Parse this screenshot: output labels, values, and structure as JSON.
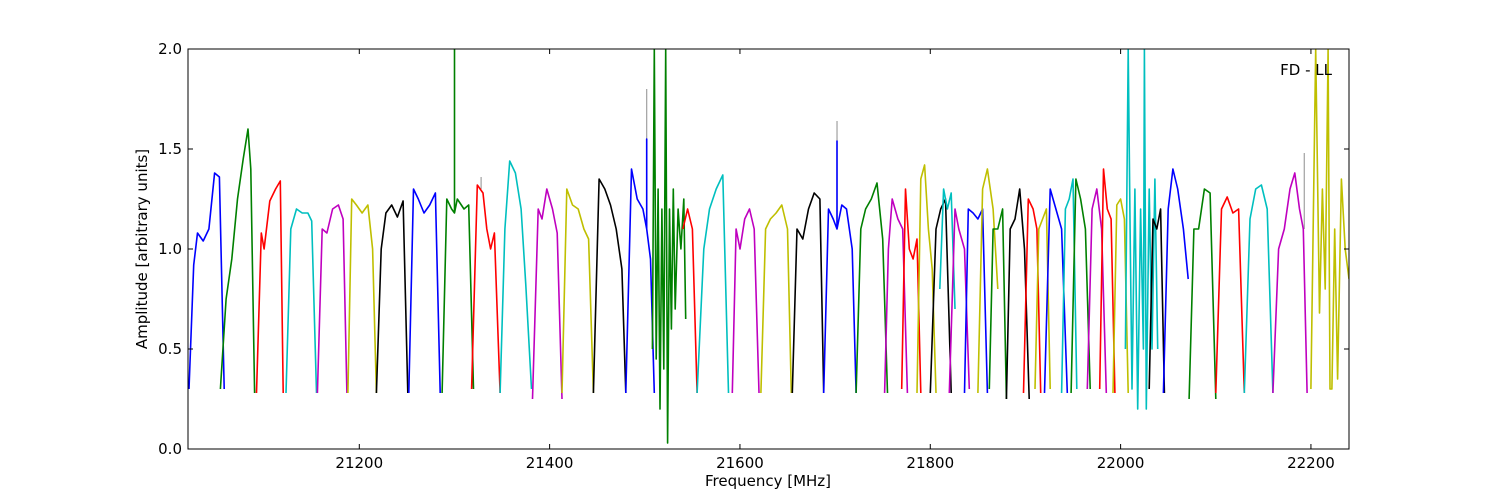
{
  "chart_data": {
    "type": "line",
    "title": "",
    "annotation": "FD - LL",
    "xlabel": "Frequency [MHz]",
    "ylabel": "Amplitude [arbitrary units]",
    "xlim": [
      21020,
      22240
    ],
    "ylim": [
      0.0,
      2.0
    ],
    "xticks": [
      21200,
      21400,
      21600,
      21800,
      22000,
      22200
    ],
    "xtick_labels": [
      "21200",
      "21400",
      "21600",
      "21800",
      "22000",
      "22200"
    ],
    "yticks": [
      0.0,
      0.5,
      1.0,
      1.5,
      2.0
    ],
    "ytick_labels": [
      "0.0",
      "0.5",
      "1.0",
      "1.5",
      "2.0"
    ],
    "grid": false,
    "legend": "none",
    "background_color": "#ffffff",
    "series_colors": [
      "#0000ff",
      "#008000",
      "#ff0000",
      "#00bfbf",
      "#bf00bf",
      "#bfbf00",
      "#000000"
    ],
    "spur_color": "#a0a0a0",
    "series": [
      {
        "color": "#0000ff",
        "x": [
          21021,
          21026,
          21030,
          21036,
          21042,
          21048,
          21053,
          21058
        ],
        "y": [
          0.3,
          0.92,
          1.08,
          1.04,
          1.1,
          1.38,
          1.36,
          0.3
        ]
      },
      {
        "color": "#008000",
        "x": [
          21054,
          21060,
          21066,
          21072,
          21078,
          21083,
          21086,
          21090
        ],
        "y": [
          0.3,
          0.75,
          0.95,
          1.25,
          1.45,
          1.6,
          1.4,
          0.28
        ]
      },
      {
        "color": "#ff0000",
        "x": [
          21092,
          21097,
          21100,
          21106,
          21112,
          21117,
          21120
        ],
        "y": [
          0.28,
          1.08,
          1.0,
          1.24,
          1.3,
          1.34,
          0.28
        ]
      },
      {
        "color": "#00bfbf",
        "x": [
          21123,
          21128,
          21134,
          21140,
          21146,
          21150,
          21155
        ],
        "y": [
          0.28,
          1.1,
          1.2,
          1.18,
          1.18,
          1.14,
          0.28
        ]
      },
      {
        "color": "#bf00bf",
        "x": [
          21156,
          21161,
          21166,
          21172,
          21178,
          21183,
          21187
        ],
        "y": [
          0.28,
          1.1,
          1.08,
          1.2,
          1.22,
          1.15,
          0.28
        ]
      },
      {
        "color": "#bfbf00",
        "x": [
          21188,
          21192,
          21197,
          21203,
          21209,
          21214,
          21218
        ],
        "y": [
          0.28,
          1.25,
          1.22,
          1.18,
          1.22,
          1.0,
          0.28
        ]
      },
      {
        "color": "#000000",
        "x": [
          21218,
          21223,
          21228,
          21234,
          21240,
          21246,
          21251
        ],
        "y": [
          0.28,
          1.0,
          1.18,
          1.22,
          1.16,
          1.24,
          0.28
        ]
      },
      {
        "color": "#0000ff",
        "x": [
          21252,
          21257,
          21262,
          21268,
          21274,
          21280,
          21285
        ],
        "y": [
          0.28,
          1.3,
          1.25,
          1.18,
          1.22,
          1.28,
          0.28
        ]
      },
      {
        "color": "#008000",
        "x": [
          21287,
          21292,
          21297,
          21300,
          21300,
          21300,
          21303,
          21310,
          21315,
          21320
        ],
        "y": [
          0.28,
          1.25,
          1.2,
          1.18,
          2.0,
          1.18,
          1.25,
          1.2,
          1.22,
          0.3
        ]
      },
      {
        "color": "#ff0000",
        "x": [
          21318,
          21324,
          21330,
          21334,
          21338,
          21342,
          21348
        ],
        "y": [
          0.3,
          1.32,
          1.28,
          1.1,
          1.0,
          1.08,
          0.28
        ]
      },
      {
        "color": "#00bfbf",
        "x": [
          21348,
          21353,
          21358,
          21364,
          21370,
          21375,
          21381
        ],
        "y": [
          0.28,
          1.1,
          1.44,
          1.38,
          1.2,
          0.82,
          0.3
        ]
      },
      {
        "color": "#bf00bf",
        "x": [
          21382,
          21388,
          21392,
          21397,
          21403,
          21408,
          21413
        ],
        "y": [
          0.25,
          1.2,
          1.15,
          1.3,
          1.2,
          1.08,
          0.25
        ]
      },
      {
        "color": "#bfbf00",
        "x": [
          21413,
          21418,
          21424,
          21430,
          21436,
          21441,
          21446
        ],
        "y": [
          0.28,
          1.3,
          1.22,
          1.2,
          1.1,
          1.05,
          0.28
        ]
      },
      {
        "color": "#000000",
        "x": [
          21446,
          21452,
          21458,
          21464,
          21470,
          21476,
          21480
        ],
        "y": [
          0.28,
          1.35,
          1.3,
          1.22,
          1.1,
          0.9,
          0.28
        ]
      },
      {
        "color": "#0000ff",
        "x": [
          21480,
          21486,
          21492,
          21498,
          21502,
          21502,
          21502,
          21506,
          21510
        ],
        "y": [
          0.28,
          1.4,
          1.25,
          1.2,
          1.1,
          1.55,
          1.1,
          0.95,
          0.28
        ]
      },
      {
        "color": "#008000",
        "x": [
          21508,
          21510,
          21512,
          21514,
          21516,
          21518,
          21520,
          21522,
          21524,
          21526,
          21528,
          21530,
          21532,
          21535,
          21538,
          21541,
          21543
        ],
        "y": [
          0.5,
          2.0,
          0.45,
          1.3,
          0.2,
          1.2,
          0.4,
          2.0,
          0.03,
          1.2,
          0.6,
          1.3,
          0.7,
          1.2,
          1.0,
          1.25,
          0.65
        ]
      },
      {
        "color": "#ff0000",
        "x": [
          21540,
          21545,
          21550,
          21555
        ],
        "y": [
          1.1,
          1.2,
          1.1,
          0.28
        ]
      },
      {
        "color": "#00bfbf",
        "x": [
          21555,
          21562,
          21568,
          21575,
          21582,
          21588
        ],
        "y": [
          0.28,
          1.0,
          1.2,
          1.3,
          1.37,
          0.28
        ]
      },
      {
        "color": "#bf00bf",
        "x": [
          21592,
          21596,
          21600,
          21605,
          21610,
          21615,
          21620
        ],
        "y": [
          0.28,
          1.1,
          1.0,
          1.15,
          1.2,
          1.1,
          0.28
        ]
      },
      {
        "color": "#bfbf00",
        "x": [
          21622,
          21627,
          21632,
          21638,
          21644,
          21650,
          21654
        ],
        "y": [
          0.28,
          1.1,
          1.15,
          1.18,
          1.22,
          1.1,
          0.28
        ]
      },
      {
        "color": "#000000",
        "x": [
          21655,
          21660,
          21666,
          21672,
          21678,
          21684,
          21688
        ],
        "y": [
          0.28,
          1.1,
          1.05,
          1.2,
          1.28,
          1.25,
          0.28
        ]
      },
      {
        "color": "#0000ff",
        "x": [
          21688,
          21693,
          21698,
          21702,
          21702,
          21702,
          21707,
          21712,
          21718,
          21722
        ],
        "y": [
          0.28,
          1.2,
          1.15,
          1.1,
          1.54,
          1.1,
          1.22,
          1.2,
          1.0,
          0.28
        ]
      },
      {
        "color": "#008000",
        "x": [
          21722,
          21727,
          21732,
          21738,
          21744,
          21750,
          21755
        ],
        "y": [
          0.28,
          1.1,
          1.2,
          1.25,
          1.33,
          1.05,
          0.28
        ]
      },
      {
        "color": "#bf00bf",
        "x": [
          21752,
          21756,
          21760,
          21766,
          21771,
          21776
        ],
        "y": [
          0.28,
          1.0,
          1.25,
          1.15,
          1.1,
          0.28
        ]
      },
      {
        "color": "#ff0000",
        "x": [
          21770,
          21774,
          21778,
          21782,
          21786,
          21790
        ],
        "y": [
          0.3,
          1.3,
          1.0,
          0.95,
          1.05,
          0.28
        ]
      },
      {
        "color": "#bfbf00",
        "x": [
          21786,
          21790,
          21794,
          21798,
          21802,
          21806
        ],
        "y": [
          0.28,
          1.35,
          1.42,
          1.1,
          0.9,
          0.28
        ]
      },
      {
        "color": "#000000",
        "x": [
          21800,
          21806,
          21811,
          21816,
          21822
        ],
        "y": [
          0.28,
          1.1,
          1.2,
          1.25,
          0.28
        ]
      },
      {
        "color": "#00bfbf",
        "x": [
          21810,
          21814,
          21818,
          21822,
          21826
        ],
        "y": [
          0.8,
          1.3,
          1.2,
          1.28,
          0.7
        ]
      },
      {
        "color": "#bf00bf",
        "x": [
          21820,
          21826,
          21830,
          21836,
          21841
        ],
        "y": [
          0.28,
          1.2,
          1.1,
          1.0,
          0.3
        ]
      },
      {
        "color": "#0000ff",
        "x": [
          21836,
          21840,
          21845,
          21850,
          21855,
          21860
        ],
        "y": [
          0.28,
          1.2,
          1.18,
          1.15,
          1.2,
          0.28
        ]
      },
      {
        "color": "#bfbf00",
        "x": [
          21850,
          21855,
          21860,
          21866,
          21871
        ],
        "y": [
          0.28,
          1.3,
          1.4,
          1.2,
          0.8
        ]
      },
      {
        "color": "#008000",
        "x": [
          21862,
          21866,
          21871,
          21876,
          21880
        ],
        "y": [
          0.3,
          1.1,
          1.1,
          1.2,
          0.25
        ]
      },
      {
        "color": "#000000",
        "x": [
          21880,
          21884,
          21889,
          21894,
          21899,
          21904
        ],
        "y": [
          0.25,
          1.1,
          1.15,
          1.3,
          1.0,
          0.25
        ]
      },
      {
        "color": "#ff0000",
        "x": [
          21898,
          21903,
          21908,
          21912,
          21916
        ],
        "y": [
          0.28,
          1.25,
          1.2,
          1.1,
          0.28
        ]
      },
      {
        "color": "#bfbf00",
        "x": [
          21910,
          21914,
          21918,
          21922,
          21926
        ],
        "y": [
          0.3,
          1.1,
          1.15,
          1.2,
          0.3
        ]
      },
      {
        "color": "#0000ff",
        "x": [
          21920,
          21926,
          21932,
          21938,
          21944
        ],
        "y": [
          0.28,
          1.3,
          1.2,
          1.1,
          0.28
        ]
      },
      {
        "color": "#00bfbf",
        "x": [
          21938,
          21942,
          21946,
          21950,
          21954
        ],
        "y": [
          0.28,
          1.2,
          1.25,
          1.35,
          0.3
        ]
      },
      {
        "color": "#008000",
        "x": [
          21948,
          21953,
          21958,
          21963,
          21968
        ],
        "y": [
          0.28,
          1.35,
          1.25,
          1.1,
          0.3
        ]
      },
      {
        "color": "#bf00bf",
        "x": [
          21965,
          21970,
          21975,
          21980,
          21985
        ],
        "y": [
          0.3,
          1.2,
          1.3,
          1.1,
          0.28
        ]
      },
      {
        "color": "#ff0000",
        "x": [
          21978,
          21982,
          21986,
          21990,
          21994
        ],
        "y": [
          0.3,
          1.4,
          1.2,
          1.15,
          0.28
        ]
      },
      {
        "color": "#bfbf00",
        "x": [
          21992,
          21996,
          22000,
          22004,
          22008
        ],
        "y": [
          0.28,
          1.22,
          1.25,
          1.15,
          0.28
        ]
      },
      {
        "color": "#00bfbf",
        "x": [
          22005,
          22008,
          22010,
          22012,
          22015,
          22018,
          22021,
          22024,
          22025,
          22027,
          22030,
          22033,
          22036,
          22039
        ],
        "y": [
          0.5,
          2.0,
          1.1,
          0.3,
          1.3,
          0.2,
          1.2,
          0.5,
          2.0,
          0.2,
          1.3,
          0.5,
          1.35,
          0.5
        ]
      },
      {
        "color": "#000000",
        "x": [
          22030,
          22034,
          22038,
          22042,
          22046
        ],
        "y": [
          0.3,
          1.15,
          1.1,
          1.2,
          0.28
        ]
      },
      {
        "color": "#0000ff",
        "x": [
          22045,
          22050,
          22055,
          22060,
          22066,
          22071
        ],
        "y": [
          0.28,
          1.2,
          1.4,
          1.3,
          1.1,
          0.85
        ]
      },
      {
        "color": "#008000",
        "x": [
          22072,
          22077,
          22082,
          22088,
          22094,
          22100
        ],
        "y": [
          0.25,
          1.1,
          1.1,
          1.3,
          1.28,
          0.25
        ]
      },
      {
        "color": "#ff0000",
        "x": [
          22100,
          22106,
          22112,
          22118,
          22124,
          22130
        ],
        "y": [
          0.28,
          1.2,
          1.26,
          1.18,
          1.2,
          0.28
        ]
      },
      {
        "color": "#00bfbf",
        "x": [
          22130,
          22136,
          22142,
          22148,
          22154,
          22160
        ],
        "y": [
          0.28,
          1.15,
          1.3,
          1.32,
          1.2,
          0.28
        ]
      },
      {
        "color": "#bf00bf",
        "x": [
          22160,
          22166,
          22172,
          22178,
          22183,
          22188,
          22192,
          22196
        ],
        "y": [
          0.28,
          1.0,
          1.1,
          1.3,
          1.38,
          1.2,
          1.1,
          0.28
        ]
      },
      {
        "color": "#bfbf00",
        "x": [
          22200,
          22205,
          22209,
          22212,
          22215,
          22218,
          22220,
          22222,
          22225,
          22228,
          22232,
          22236,
          22240
        ],
        "y": [
          0.3,
          2.0,
          0.68,
          1.3,
          0.8,
          2.0,
          0.3,
          0.3,
          1.1,
          0.35,
          1.35,
          1.0,
          0.85
        ]
      }
    ],
    "spurs": [
      {
        "x": 21502,
        "y0": 1.1,
        "y1": 1.8
      },
      {
        "x": 21702,
        "y0": 1.1,
        "y1": 1.64
      },
      {
        "x": 21328,
        "y0": 1.3,
        "y1": 1.36
      },
      {
        "x": 22193,
        "y0": 1.1,
        "y1": 1.48
      }
    ]
  }
}
